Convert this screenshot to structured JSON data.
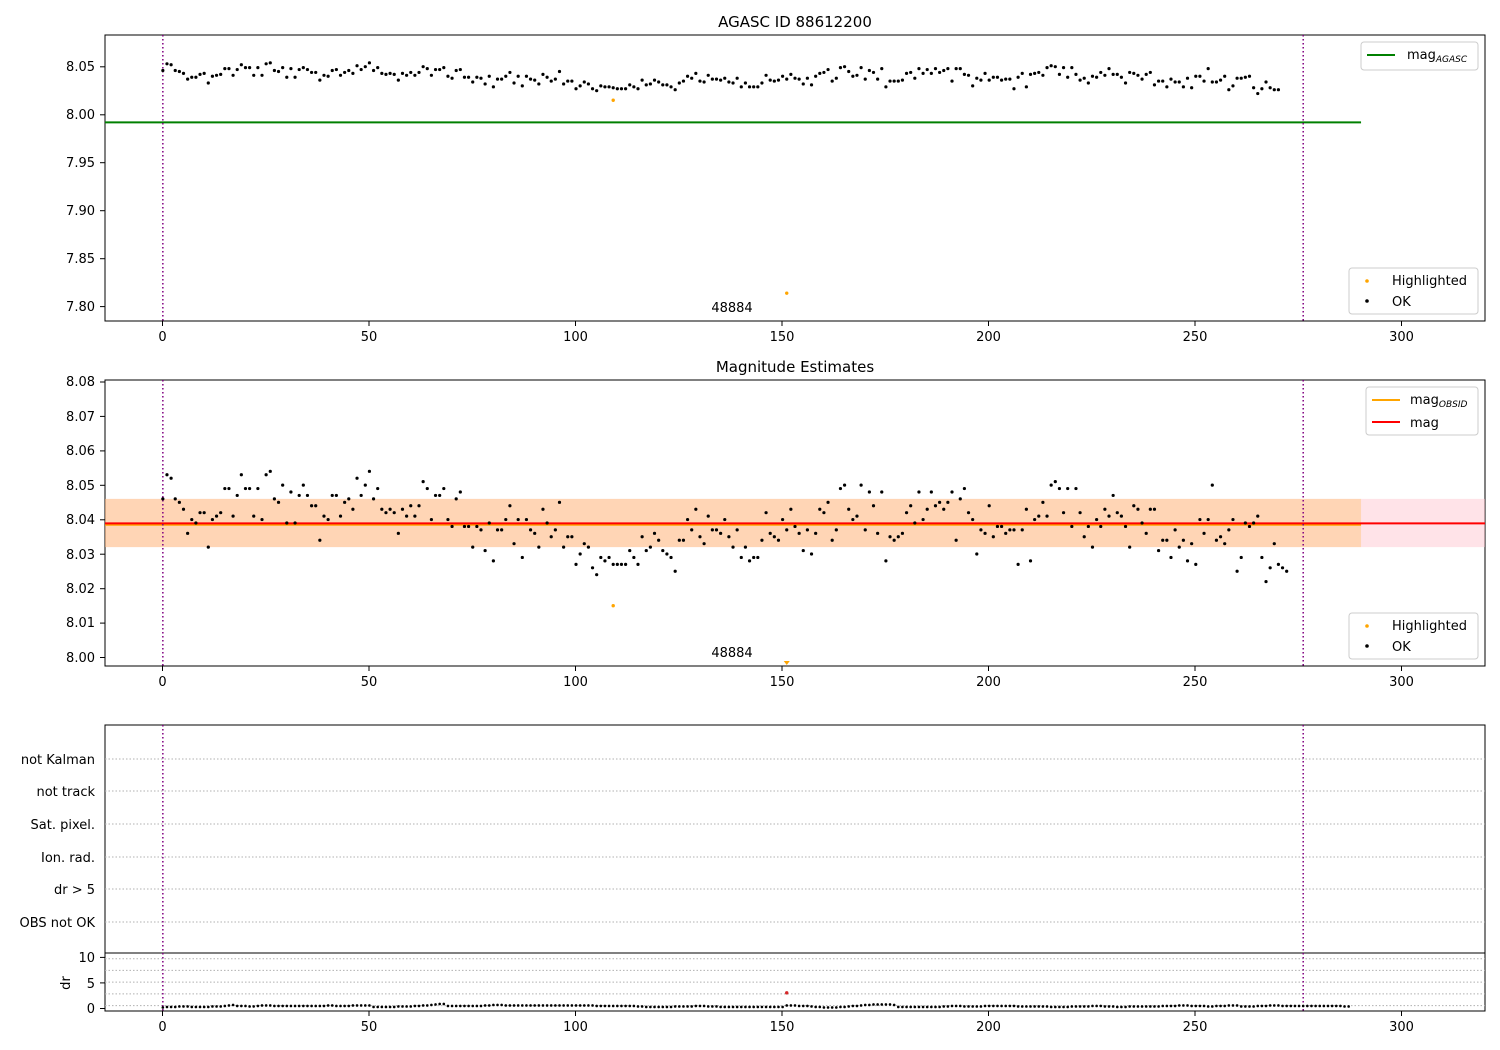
{
  "chart_data": [
    {
      "type": "scatter",
      "title": "AGASC ID 88612200",
      "xlim": [
        -14,
        320
      ],
      "ylim": [
        7.785,
        8.083
      ],
      "xticks": [
        "0",
        "50",
        "100",
        "150",
        "200",
        "250",
        "300"
      ],
      "yticks": [
        "7.80",
        "7.85",
        "7.90",
        "7.95",
        "8.00",
        "8.05"
      ],
      "vlines": [
        0,
        276
      ],
      "hlines": [
        {
          "name": "mag_AGASC",
          "y": 7.992,
          "x_end": 290,
          "color": "#008000"
        }
      ],
      "annotation": "48884",
      "legend_lines": [
        {
          "label": "mag",
          "sub": "AGASC",
          "color": "#008000"
        }
      ],
      "legend_points": [
        {
          "label": "Highlighted",
          "color": "#ffa500"
        },
        {
          "label": "OK",
          "color": "#000000"
        }
      ],
      "series": [
        {
          "name": "OK",
          "color": "#000000",
          "x_start": 0,
          "x_step": 1,
          "values": [
            8.046,
            8.053,
            8.052,
            8.046,
            8.045,
            8.043,
            8.037,
            8.039,
            8.039,
            8.042,
            8.043,
            8.033,
            8.04,
            8.041,
            8.042,
            8.048,
            8.048,
            8.041,
            8.047,
            8.052,
            8.049,
            8.049,
            8.041,
            8.049,
            8.041,
            8.053,
            8.054,
            8.046,
            8.045,
            8.049,
            8.039,
            8.048,
            8.039,
            8.047,
            8.049,
            8.047,
            8.044,
            8.044,
            8.036,
            8.041,
            8.04,
            8.046,
            8.047,
            8.041,
            8.044,
            8.046,
            8.043,
            8.051,
            8.047,
            8.05,
            8.054,
            8.046,
            8.049,
            8.043,
            8.042,
            8.043,
            8.042,
            8.036,
            8.043,
            8.041,
            8.044,
            8.041,
            8.044,
            8.05,
            8.048,
            8.041,
            8.047,
            8.047,
            8.049,
            8.04,
            8.038,
            8.046,
            8.047,
            8.039,
            8.039,
            8.034,
            8.039,
            8.038,
            8.032,
            8.04,
            8.029,
            8.037,
            8.037,
            8.04,
            8.044,
            8.033,
            8.04,
            8.03,
            8.04,
            8.037,
            8.036,
            8.032,
            8.042,
            8.039,
            8.035,
            8.037,
            8.045,
            8.032,
            8.035,
            8.035,
            8.027,
            8.03,
            8.034,
            8.032,
            8.027,
            8.025,
            8.03,
            8.029,
            8.029,
            8.028,
            8.027,
            8.027,
            8.027,
            8.031,
            8.029,
            8.027,
            8.036,
            8.031,
            8.032,
            8.036,
            8.034,
            8.031,
            8.031,
            8.029,
            8.026,
            8.033,
            8.035,
            8.04,
            8.038,
            8.043,
            8.035,
            8.034,
            8.041,
            8.037,
            8.037,
            8.036,
            8.038,
            8.034,
            8.033,
            8.038,
            8.029,
            8.033,
            8.029,
            8.029,
            8.029,
            8.033,
            8.041,
            8.036,
            8.035,
            8.036,
            8.04,
            8.037,
            8.042,
            8.038,
            8.037,
            8.032,
            8.038,
            8.031,
            8.04,
            8.043,
            8.044,
            8.047,
            8.035,
            8.038,
            8.049,
            8.05,
            8.045,
            8.04,
            8.041,
            8.049,
            8.037,
            8.046,
            8.044,
            8.037,
            8.048,
            8.029,
            8.035,
            8.035,
            8.035,
            8.036,
            8.043,
            8.044,
            8.038,
            8.048,
            8.043,
            8.047,
            8.043,
            8.048,
            8.044,
            8.046,
            8.048,
            8.035,
            8.048,
            8.048,
            8.042,
            8.041,
            8.03,
            8.038,
            8.036,
            8.043,
            8.036,
            8.039,
            8.039,
            8.036,
            8.037,
            8.037,
            8.027,
            8.039,
            8.043,
            8.029,
            8.042,
            8.043,
            8.044,
            8.041,
            8.049,
            8.051,
            8.05,
            8.042,
            8.049,
            8.039,
            8.049,
            8.042,
            8.036,
            8.038,
            8.033,
            8.04,
            8.039,
            8.044,
            8.041,
            8.048,
            8.042,
            8.042,
            8.039,
            8.033,
            8.044,
            8.043,
            8.041,
            8.037,
            8.042,
            8.044,
            8.031,
            8.035,
            8.035,
            8.029,
            8.037,
            8.034,
            8.034,
            8.029,
            8.038,
            8.028,
            8.04,
            8.04,
            8.035,
            8.048,
            8.034,
            8.034,
            8.036,
            8.04,
            8.026,
            8.03,
            8.038,
            8.038,
            8.039,
            8.04,
            8.028,
            8.022,
            8.027,
            8.034,
            8.028,
            8.026,
            8.026
          ]
        },
        {
          "name": "Highlighted",
          "color": "#ffa500",
          "x": [
            109,
            151
          ],
          "values": [
            8.015,
            7.814
          ]
        }
      ]
    },
    {
      "type": "scatter",
      "title": "Magnitude Estimates",
      "xlim": [
        -14,
        320
      ],
      "ylim": [
        7.9975,
        8.0805
      ],
      "xticks": [
        "0",
        "50",
        "100",
        "150",
        "200",
        "250",
        "300"
      ],
      "yticks": [
        "8.00",
        "8.01",
        "8.02",
        "8.03",
        "8.04",
        "8.05",
        "8.06",
        "8.07",
        "8.08"
      ],
      "vlines": [
        0,
        276
      ],
      "band_outer": [
        8.032,
        8.046
      ],
      "band_inner": [
        8.0385,
        8.0395
      ],
      "hlines": [
        {
          "name": "mag_OBSID",
          "y": 8.0385,
          "x_end": 290,
          "color": "#ffa500"
        },
        {
          "name": "mag",
          "y": 8.0389,
          "x_end": 320,
          "color": "#ff0000"
        }
      ],
      "annotation": "48884",
      "legend_lines": [
        {
          "label": "mag",
          "sub": "OBSID",
          "color": "#ffa500"
        },
        {
          "label": "mag",
          "sub": "",
          "color": "#ff0000"
        }
      ],
      "legend_points": [
        {
          "label": "Highlighted",
          "color": "#ffa500"
        },
        {
          "label": "OK",
          "color": "#000000"
        }
      ],
      "series": [
        {
          "name": "OK",
          "color": "#000000",
          "x_start": 0,
          "x_step": 1,
          "values": [
            8.046,
            8.053,
            8.052,
            8.046,
            8.045,
            8.043,
            8.036,
            8.04,
            8.039,
            8.042,
            8.042,
            8.032,
            8.04,
            8.041,
            8.042,
            8.049,
            8.049,
            8.041,
            8.047,
            8.053,
            8.049,
            8.049,
            8.041,
            8.049,
            8.04,
            8.053,
            8.054,
            8.046,
            8.045,
            8.05,
            8.039,
            8.048,
            8.039,
            8.047,
            8.05,
            8.047,
            8.044,
            8.044,
            8.034,
            8.041,
            8.04,
            8.047,
            8.047,
            8.041,
            8.045,
            8.046,
            8.043,
            8.052,
            8.047,
            8.05,
            8.054,
            8.046,
            8.049,
            8.043,
            8.042,
            8.043,
            8.042,
            8.036,
            8.043,
            8.041,
            8.044,
            8.041,
            8.044,
            8.051,
            8.049,
            8.04,
            8.047,
            8.047,
            8.049,
            8.04,
            8.038,
            8.046,
            8.048,
            8.038,
            8.038,
            8.032,
            8.038,
            8.037,
            8.031,
            8.039,
            8.028,
            8.037,
            8.037,
            8.04,
            8.044,
            8.033,
            8.04,
            8.029,
            8.04,
            8.037,
            8.036,
            8.032,
            8.043,
            8.039,
            8.035,
            8.037,
            8.045,
            8.032,
            8.035,
            8.035,
            8.027,
            8.03,
            8.033,
            8.032,
            8.026,
            8.024,
            8.029,
            8.028,
            8.029,
            8.027,
            8.027,
            8.027,
            8.027,
            8.031,
            8.029,
            8.027,
            8.035,
            8.031,
            8.032,
            8.036,
            8.034,
            8.031,
            8.03,
            8.029,
            8.025,
            8.034,
            8.034,
            8.04,
            8.037,
            8.043,
            8.035,
            8.033,
            8.041,
            8.037,
            8.037,
            8.036,
            8.04,
            8.035,
            8.032,
            8.037,
            8.029,
            8.032,
            8.028,
            8.029,
            8.029,
            8.034,
            8.042,
            8.036,
            8.035,
            8.034,
            8.04,
            8.037,
            8.043,
            8.038,
            8.036,
            8.031,
            8.037,
            8.03,
            8.036,
            8.043,
            8.042,
            8.045,
            8.034,
            8.037,
            8.049,
            8.05,
            8.043,
            8.04,
            8.041,
            8.05,
            8.037,
            8.048,
            8.044,
            8.036,
            8.048,
            8.028,
            8.035,
            8.034,
            8.035,
            8.036,
            8.042,
            8.044,
            8.039,
            8.048,
            8.04,
            8.043,
            8.048,
            8.044,
            8.045,
            8.043,
            8.045,
            8.048,
            8.034,
            8.046,
            8.049,
            8.042,
            8.04,
            8.03,
            8.037,
            8.036,
            8.044,
            8.035,
            8.038,
            8.038,
            8.036,
            8.037,
            8.037,
            8.027,
            8.037,
            8.043,
            8.028,
            8.04,
            8.041,
            8.045,
            8.041,
            8.05,
            8.051,
            8.049,
            8.042,
            8.049,
            8.038,
            8.049,
            8.042,
            8.035,
            8.038,
            8.032,
            8.04,
            8.038,
            8.043,
            8.041,
            8.047,
            8.042,
            8.041,
            8.038,
            8.032,
            8.044,
            8.043,
            8.039,
            8.036,
            8.043,
            8.043,
            8.031,
            8.034,
            8.034,
            8.029,
            8.037,
            8.032,
            8.034,
            8.028,
            8.033,
            8.027,
            8.04,
            8.036,
            8.04,
            8.05,
            8.034,
            8.035,
            8.033,
            8.037,
            8.04,
            8.025,
            8.029,
            8.039,
            8.038,
            8.039,
            8.041,
            8.029,
            8.022,
            8.026,
            8.033,
            8.027,
            8.026,
            8.025
          ]
        },
        {
          "name": "Highlighted",
          "color": "#ffa500",
          "x": [
            109,
            151
          ],
          "values": [
            8.015,
            7.998
          ]
        }
      ]
    },
    {
      "type": "scatter",
      "title": "",
      "xlim": [
        -14,
        320
      ],
      "flags": [
        "not Kalman",
        "not track",
        "Sat. pixel.",
        "Ion. rad.",
        "dr > 5",
        "OBS not OK"
      ],
      "vlines": [
        0,
        276
      ]
    },
    {
      "type": "scatter",
      "title": "",
      "ylabel": "dr",
      "xlim": [
        -14,
        320
      ],
      "ylim": [
        -0.5,
        11
      ],
      "xticks": [
        "0",
        "50",
        "100",
        "150",
        "200",
        "250",
        "300"
      ],
      "yticks": [
        "0",
        "5",
        "10"
      ],
      "vlines": [
        0,
        276
      ],
      "series": [
        {
          "name": "OK",
          "color": "#000000",
          "x_start": 0,
          "x_step": 1,
          "values": [
            0.2,
            0.3,
            0.3,
            0.3,
            0.4,
            0.4,
            0.4,
            0.3,
            0.3,
            0.3,
            0.3,
            0.3,
            0.4,
            0.4,
            0.4,
            0.5,
            0.6,
            0.7,
            0.5,
            0.5,
            0.5,
            0.4,
            0.4,
            0.5,
            0.6,
            0.6,
            0.6,
            0.5,
            0.5,
            0.5,
            0.5,
            0.5,
            0.5,
            0.5,
            0.5,
            0.5,
            0.5,
            0.5,
            0.5,
            0.5,
            0.6,
            0.6,
            0.5,
            0.5,
            0.5,
            0.5,
            0.6,
            0.6,
            0.6,
            0.6,
            0.6,
            0.3,
            0.3,
            0.3,
            0.3,
            0.3,
            0.3,
            0.4,
            0.4,
            0.4,
            0.4,
            0.5,
            0.5,
            0.6,
            0.6,
            0.7,
            0.8,
            0.9,
            0.9,
            0.5,
            0.5,
            0.5,
            0.5,
            0.5,
            0.5,
            0.5,
            0.5,
            0.5,
            0.6,
            0.6,
            0.7,
            0.7,
            0.7,
            0.6,
            0.6,
            0.6,
            0.6,
            0.6,
            0.6,
            0.6,
            0.6,
            0.6,
            0.6,
            0.6,
            0.6,
            0.6,
            0.6,
            0.6,
            0.6,
            0.6,
            0.6,
            0.6,
            0.6,
            0.6,
            0.6,
            0.5,
            0.5,
            0.5,
            0.5,
            0.5,
            0.5,
            0.5,
            0.5,
            0.5,
            0.5,
            0.4,
            0.4,
            0.3,
            0.3,
            0.3,
            0.3,
            0.3,
            0.3,
            0.3,
            0.4,
            0.4,
            0.4,
            0.4,
            0.4,
            0.5,
            0.5,
            0.5,
            0.4,
            0.4,
            0.4,
            0.3,
            0.3,
            0.3,
            0.3,
            0.3,
            0.3,
            0.3,
            0.3,
            0.3,
            0.3,
            0.3,
            0.3,
            0.3,
            0.3,
            0.3,
            0.3,
            0.6,
            0.6,
            0.6,
            0.5,
            0.5,
            0.5,
            0.4,
            0.3,
            0.3,
            0.2,
            0.2,
            0.2,
            0.2,
            0.3,
            0.3,
            0.4,
            0.5,
            0.5,
            0.6,
            0.7,
            0.7,
            0.8,
            0.8,
            0.8,
            0.8,
            0.8,
            0.7,
            0.3,
            0.3,
            0.3,
            0.3,
            0.3,
            0.3,
            0.3,
            0.3,
            0.3,
            0.3,
            0.3,
            0.4,
            0.4,
            0.5,
            0.5,
            0.5,
            0.4,
            0.4,
            0.4,
            0.4,
            0.4,
            0.5,
            0.5,
            0.5,
            0.5,
            0.5,
            0.5,
            0.5,
            0.5,
            0.4,
            0.4,
            0.4,
            0.4,
            0.4,
            0.4,
            0.4,
            0.4,
            0.3,
            0.3,
            0.3,
            0.3,
            0.3,
            0.4,
            0.4,
            0.4,
            0.4,
            0.4,
            0.5,
            0.5,
            0.5,
            0.4,
            0.4,
            0.4,
            0.3,
            0.3,
            0.3,
            0.4,
            0.4,
            0.4,
            0.4,
            0.4,
            0.4,
            0.4,
            0.4,
            0.5,
            0.5,
            0.5,
            0.5,
            0.6,
            0.6,
            0.6,
            0.5,
            0.5,
            0.5,
            0.5,
            0.4,
            0.4,
            0.5,
            0.5,
            0.5,
            0.6,
            0.6,
            0.6,
            0.4,
            0.4,
            0.4,
            0.4,
            0.5,
            0.5,
            0.5,
            0.6,
            0.6,
            0.6,
            0.5,
            0.5,
            0.5,
            0.5,
            0.5,
            0.5,
            0.5,
            0.5,
            0.5,
            0.5,
            0.5,
            0.5,
            0.5,
            0.5,
            0.5,
            0.4,
            0.4
          ]
        },
        {
          "name": "Highlighted",
          "color": "#d62728",
          "x": [
            151
          ],
          "values": [
            3.1
          ]
        }
      ]
    }
  ]
}
